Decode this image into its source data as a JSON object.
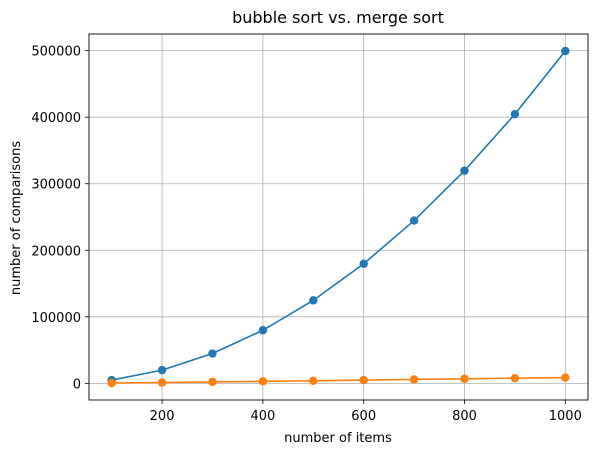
{
  "chart_data": {
    "type": "line",
    "title": "bubble sort vs. merge sort",
    "xlabel": "number of items",
    "ylabel": "number of comparisons",
    "x": [
      100,
      200,
      300,
      400,
      500,
      600,
      700,
      800,
      900,
      1000
    ],
    "series": [
      {
        "values": [
          4950,
          19900,
          44850,
          79800,
          124750,
          179700,
          244650,
          319600,
          404550,
          499500
        ],
        "color": "#1f77b4",
        "marker": "circle"
      },
      {
        "values": [
          550,
          1300,
          2200,
          3100,
          3900,
          4900,
          5900,
          6800,
          7800,
          8700
        ],
        "color": "#ff7f0e",
        "marker": "circle"
      }
    ],
    "xlim": [
      55,
      1045
    ],
    "ylim": [
      -25000,
      525000
    ],
    "xticks": [
      200,
      400,
      600,
      800,
      1000
    ],
    "yticks": [
      0,
      100000,
      200000,
      300000,
      400000,
      500000
    ],
    "grid": true,
    "legend": "none"
  }
}
